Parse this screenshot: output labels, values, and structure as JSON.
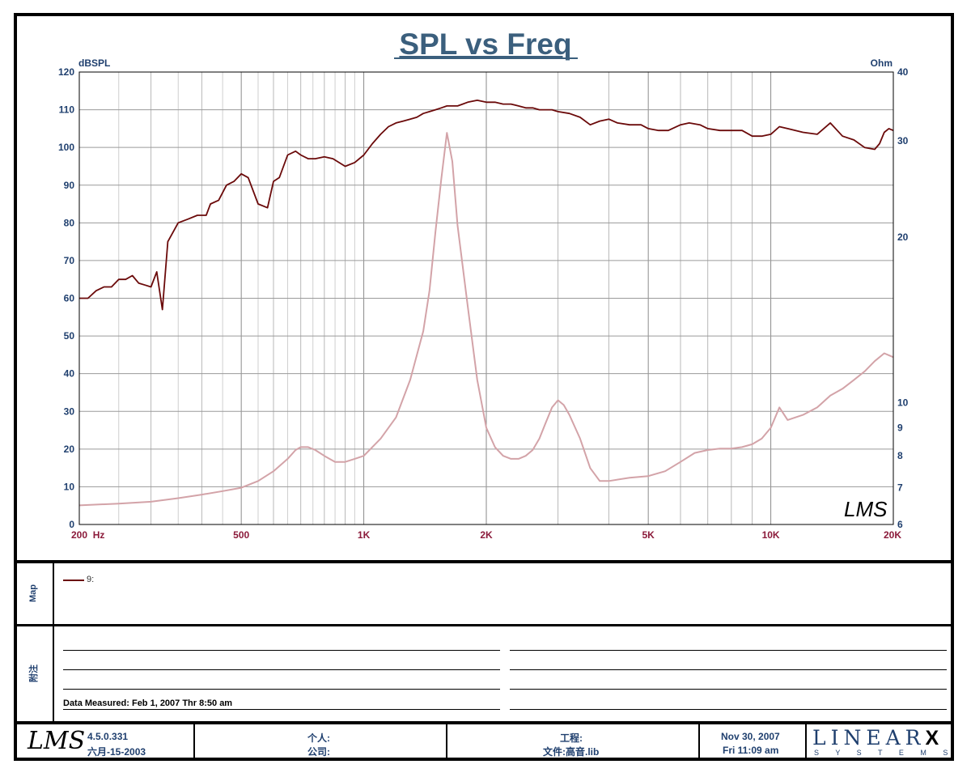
{
  "chart_data": {
    "type": "line",
    "title": "SPL vs Freq",
    "ylabel_left": "dBSPL",
    "ylabel_right": "Ohm",
    "xscale": "log",
    "xlim": [
      200,
      20000
    ],
    "ylim_left": [
      0,
      120
    ],
    "ylim_right": [
      6,
      40
    ],
    "yscale_right": "log",
    "grid": true,
    "x_ticks": [
      {
        "value": 200,
        "label": "200  Hz"
      },
      {
        "value": 500,
        "label": "500"
      },
      {
        "value": 1000,
        "label": "1K"
      },
      {
        "value": 2000,
        "label": "2K"
      },
      {
        "value": 5000,
        "label": "5K"
      },
      {
        "value": 10000,
        "label": "10K"
      },
      {
        "value": 20000,
        "label": "20K"
      }
    ],
    "y_ticks_left": [
      "0",
      "10",
      "20",
      "30",
      "40",
      "50",
      "60",
      "70",
      "80",
      "90",
      "100",
      "110",
      "120"
    ],
    "y_ticks_right": [
      {
        "value": 6,
        "label": "6"
      },
      {
        "value": 7,
        "label": "7"
      },
      {
        "value": 8,
        "label": "8"
      },
      {
        "value": 9,
        "label": "9"
      },
      {
        "value": 10,
        "label": "10"
      },
      {
        "value": 20,
        "label": "20"
      },
      {
        "value": 30,
        "label": "30"
      },
      {
        "value": 40,
        "label": "40"
      }
    ],
    "series": [
      {
        "name": "9:",
        "axis": "left",
        "color": "#6b0a0a",
        "x": [
          200,
          210,
          220,
          230,
          240,
          250,
          260,
          270,
          280,
          290,
          300,
          310,
          320,
          330,
          350,
          370,
          390,
          410,
          420,
          440,
          460,
          480,
          500,
          520,
          550,
          580,
          600,
          620,
          650,
          680,
          700,
          730,
          760,
          800,
          840,
          900,
          950,
          1000,
          1050,
          1100,
          1150,
          1200,
          1250,
          1300,
          1350,
          1400,
          1450,
          1500,
          1550,
          1600,
          1650,
          1700,
          1750,
          1800,
          1900,
          2000,
          2100,
          2200,
          2300,
          2400,
          2500,
          2600,
          2700,
          2800,
          2900,
          3000,
          3200,
          3400,
          3600,
          3800,
          4000,
          4200,
          4500,
          4800,
          5000,
          5300,
          5600,
          6000,
          6300,
          6700,
          7000,
          7500,
          8000,
          8500,
          9000,
          9500,
          10000,
          10500,
          11000,
          12000,
          13000,
          14000,
          15000,
          16000,
          17000,
          18000,
          18500,
          19000,
          19500,
          20000
        ],
        "values": [
          60,
          60,
          62,
          63,
          63,
          65,
          65,
          66,
          64,
          63.5,
          63,
          67,
          57,
          75,
          80,
          81,
          82,
          82,
          85,
          86,
          90,
          91,
          93,
          92,
          85,
          84,
          91,
          92,
          98,
          99,
          98,
          97,
          97,
          97.5,
          97,
          95,
          96,
          98,
          101,
          103.5,
          105.5,
          106.5,
          107,
          107.5,
          108,
          109,
          109.5,
          110,
          110.5,
          111,
          111,
          111,
          111.5,
          112,
          112.5,
          112,
          112,
          111.5,
          111.5,
          111,
          110.5,
          110.5,
          110,
          110,
          110,
          109.5,
          109,
          108,
          106,
          107,
          107.5,
          106.5,
          106,
          106,
          105,
          104.5,
          104.5,
          106,
          106.5,
          106,
          105,
          104.5,
          104.5,
          104.5,
          103,
          103,
          103.5,
          105.5,
          105,
          104,
          103.5,
          106.5,
          103,
          102,
          100,
          99.5,
          101,
          104,
          105,
          104.5
        ]
      },
      {
        "name": "",
        "axis": "right",
        "color": "#d3a3a8",
        "x": [
          200,
          250,
          300,
          350,
          400,
          450,
          500,
          550,
          600,
          650,
          680,
          700,
          730,
          760,
          800,
          850,
          900,
          950,
          1000,
          1100,
          1200,
          1300,
          1400,
          1450,
          1500,
          1550,
          1600,
          1650,
          1700,
          1800,
          1900,
          2000,
          2100,
          2200,
          2300,
          2400,
          2500,
          2600,
          2700,
          2800,
          2900,
          3000,
          3100,
          3200,
          3400,
          3600,
          3800,
          4000,
          4500,
          5000,
          5500,
          6000,
          6500,
          7000,
          7500,
          8000,
          8500,
          9000,
          9500,
          10000,
          10500,
          11000,
          12000,
          13000,
          14000,
          15000,
          16000,
          17000,
          18000,
          19000,
          19500,
          20000
        ],
        "values": [
          6.5,
          6.55,
          6.6,
          6.7,
          6.8,
          6.9,
          7.0,
          7.2,
          7.5,
          7.9,
          8.2,
          8.3,
          8.3,
          8.2,
          8.0,
          7.8,
          7.8,
          7.9,
          8.0,
          8.6,
          9.4,
          11.0,
          13.5,
          16.0,
          20.5,
          25.5,
          31.0,
          27.5,
          21.0,
          15.0,
          11.0,
          9.0,
          8.3,
          8.0,
          7.9,
          7.9,
          8.0,
          8.2,
          8.6,
          9.2,
          9.8,
          10.1,
          9.9,
          9.5,
          8.6,
          7.6,
          7.2,
          7.2,
          7.3,
          7.35,
          7.5,
          7.8,
          8.1,
          8.2,
          8.25,
          8.25,
          8.3,
          8.4,
          8.6,
          9.0,
          9.8,
          9.3,
          9.5,
          9.8,
          10.3,
          10.6,
          11.0,
          11.4,
          11.9,
          12.3,
          12.2,
          12.1
        ]
      }
    ]
  },
  "lms_watermark": "LMS",
  "map_panel": {
    "side_label": "Map",
    "legend_text": "9:"
  },
  "notes_panel": {
    "side_label": "附注",
    "measured": "Data Measured: Feb  1, 2007  Thr  8:50 am"
  },
  "footer": {
    "logo": "LMS",
    "version": "4.5.0.331",
    "version_date": "六月-15-2003",
    "person_label": "个人:",
    "company_label": "公司:",
    "project_label": "工程:",
    "file_label": "文件:高音.lib",
    "date": "Nov 30, 2007",
    "time": "Fri 11:09 am",
    "brand": "LINEAR",
    "brand_x": "X",
    "brand_sub": "S Y S T E M S"
  },
  "colors": {
    "title": "#3b5f7d",
    "axis_text": "#1f3f6e",
    "x_tick_text": "#8b1a3a",
    "spl_line": "#6b0a0a",
    "impedance_line": "#d3a3a8"
  }
}
